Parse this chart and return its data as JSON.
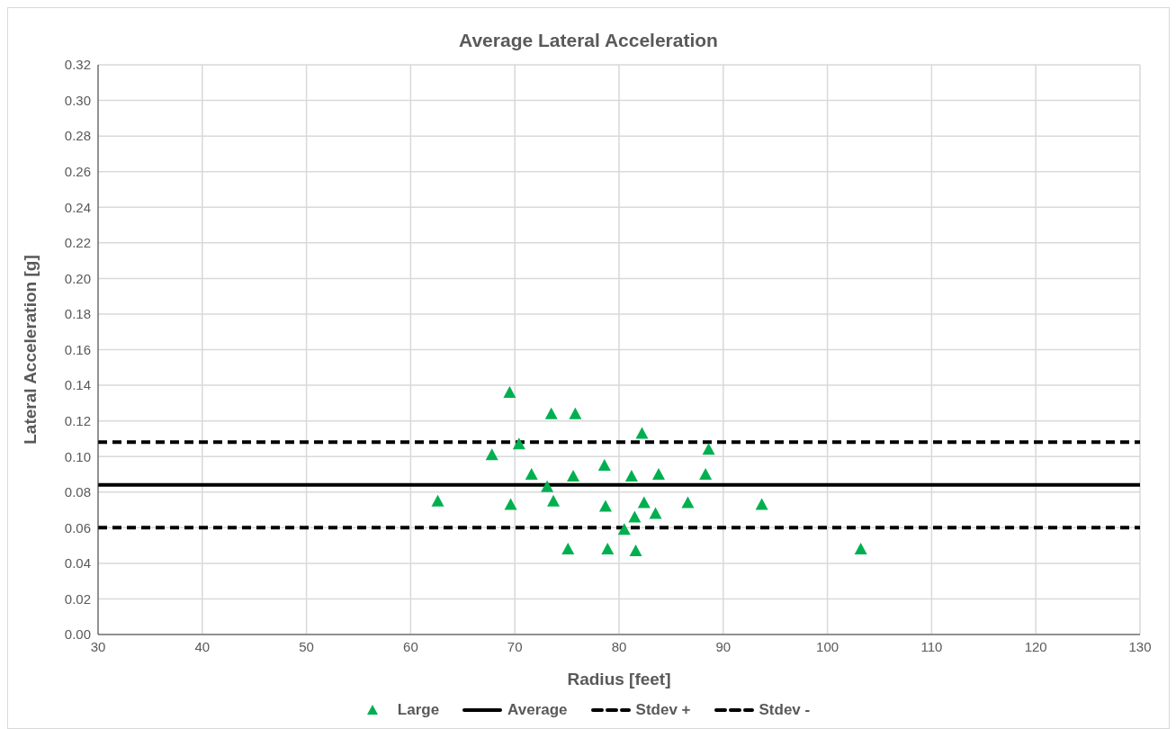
{
  "chart_data": {
    "type": "scatter",
    "title": "Average Lateral Acceleration",
    "xlabel": "Radius [feet]",
    "ylabel": "Lateral Acceleration [g]",
    "xlim": [
      30,
      130
    ],
    "xticks": [
      30,
      40,
      50,
      60,
      70,
      80,
      90,
      100,
      110,
      120,
      130
    ],
    "ylim": [
      0,
      0.32
    ],
    "yticks": [
      {
        "value": 0,
        "label": "0.00"
      },
      {
        "value": 0.02,
        "label": "0.02"
      },
      {
        "value": 0.04,
        "label": "0.04"
      },
      {
        "value": 0.06,
        "label": "0.06"
      },
      {
        "value": 0.08,
        "label": "0.08"
      },
      {
        "value": 0.1,
        "label": "0.10"
      },
      {
        "value": 0.12,
        "label": "0.12"
      },
      {
        "value": 0.14,
        "label": "0.14"
      },
      {
        "value": 0.16,
        "label": "0.16"
      },
      {
        "value": 0.18,
        "label": "0.18"
      },
      {
        "value": 0.2,
        "label": "0.20"
      },
      {
        "value": 0.22,
        "label": "0.22"
      },
      {
        "value": 0.24,
        "label": "0.24"
      },
      {
        "value": 0.26,
        "label": "0.26"
      },
      {
        "value": 0.28,
        "label": "0.28"
      },
      {
        "value": 0.3,
        "label": "0.30"
      },
      {
        "value": 0.32,
        "label": "0.32"
      }
    ],
    "grid": true,
    "legend": "bottom",
    "series": [
      {
        "name": "Large",
        "marker": "triangle",
        "color": "#00b050",
        "x": [
          62.6,
          67.8,
          69.5,
          69.6,
          70.4,
          71.6,
          73.1,
          73.5,
          73.7,
          75.1,
          75.6,
          75.8,
          78.6,
          78.7,
          78.9,
          80.5,
          81.2,
          81.5,
          81.6,
          82.2,
          82.4,
          83.5,
          83.8,
          86.6,
          88.3,
          88.6,
          93.7,
          103.2
        ],
        "values": [
          0.075,
          0.101,
          0.136,
          0.073,
          0.107,
          0.09,
          0.083,
          0.124,
          0.075,
          0.048,
          0.089,
          0.124,
          0.095,
          0.072,
          0.048,
          0.059,
          0.089,
          0.066,
          0.047,
          0.113,
          0.074,
          0.068,
          0.09,
          0.074,
          0.09,
          0.104,
          0.073,
          0.048
        ]
      },
      {
        "name": "Average",
        "type": "line",
        "marker": "none",
        "color": "#000000",
        "line_style": "solid",
        "x": [
          30,
          130
        ],
        "values": [
          0.084,
          0.084
        ]
      },
      {
        "name": "Stdev +",
        "type": "line",
        "marker": "none",
        "color": "#000000",
        "line_style": "dashed",
        "x": [
          30,
          130
        ],
        "values": [
          0.108,
          0.108
        ]
      },
      {
        "name": "Stdev -",
        "type": "line",
        "marker": "none",
        "color": "#000000",
        "line_style": "dashed",
        "x": [
          30,
          130
        ],
        "values": [
          0.06,
          0.06
        ]
      }
    ]
  }
}
